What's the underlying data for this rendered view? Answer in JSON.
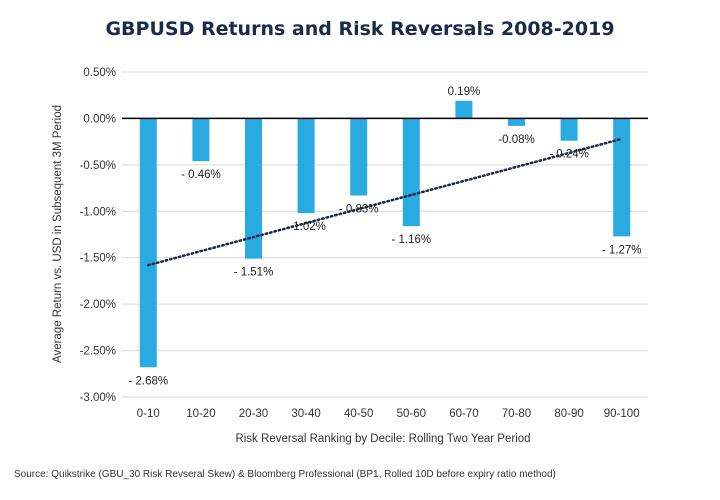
{
  "chart_data": {
    "type": "bar",
    "title": "GBPUSD Returns and Risk Reversals 2008-2019",
    "xlabel": "Risk Reversal Ranking by Decile: Rolling Two Year Period",
    "ylabel": "Average Return vs. USD in Subsequent 3M Period",
    "categories": [
      "0-10",
      "10-20",
      "20-30",
      "30-40",
      "40-50",
      "50-60",
      "60-70",
      "70-80",
      "80-90",
      "90-100"
    ],
    "values": [
      -2.68,
      -0.46,
      -1.51,
      -1.02,
      -0.83,
      -1.16,
      0.19,
      -0.08,
      -0.24,
      -1.27
    ],
    "data_labels": [
      "- 2.68%",
      "- 0.46%",
      "- 1.51%",
      "- 1.02%",
      "- 0.83%",
      "- 1.16%",
      "0.19%",
      "-0.08%",
      "- 0.24%",
      "- 1.27%"
    ],
    "ylim": [
      -3.0,
      0.5
    ],
    "yticks": [
      0.5,
      0.0,
      -0.5,
      -1.0,
      -1.5,
      -2.0,
      -2.5,
      -3.0
    ],
    "ytick_labels": [
      "0.50%",
      "0.00%",
      "-0.50%",
      "-1.00%",
      "-1.50%",
      "-2.00%",
      "-2.50%",
      "-3.00%"
    ],
    "trendline": {
      "type": "linear",
      "style": "dotted",
      "start": -1.58,
      "end": -0.22
    },
    "grid": true,
    "colors": {
      "bar": "#29abe2",
      "trend": "#1b2a4a",
      "grid": "#d9d9d9",
      "zero_line": "#000000",
      "title": "#1b2a4a"
    }
  },
  "source": "Source: Quikstrike (GBU_30 Risk Revseral Skew) & Bloomberg Professional (BP1, Rolled 10D before expiry ratio method)"
}
